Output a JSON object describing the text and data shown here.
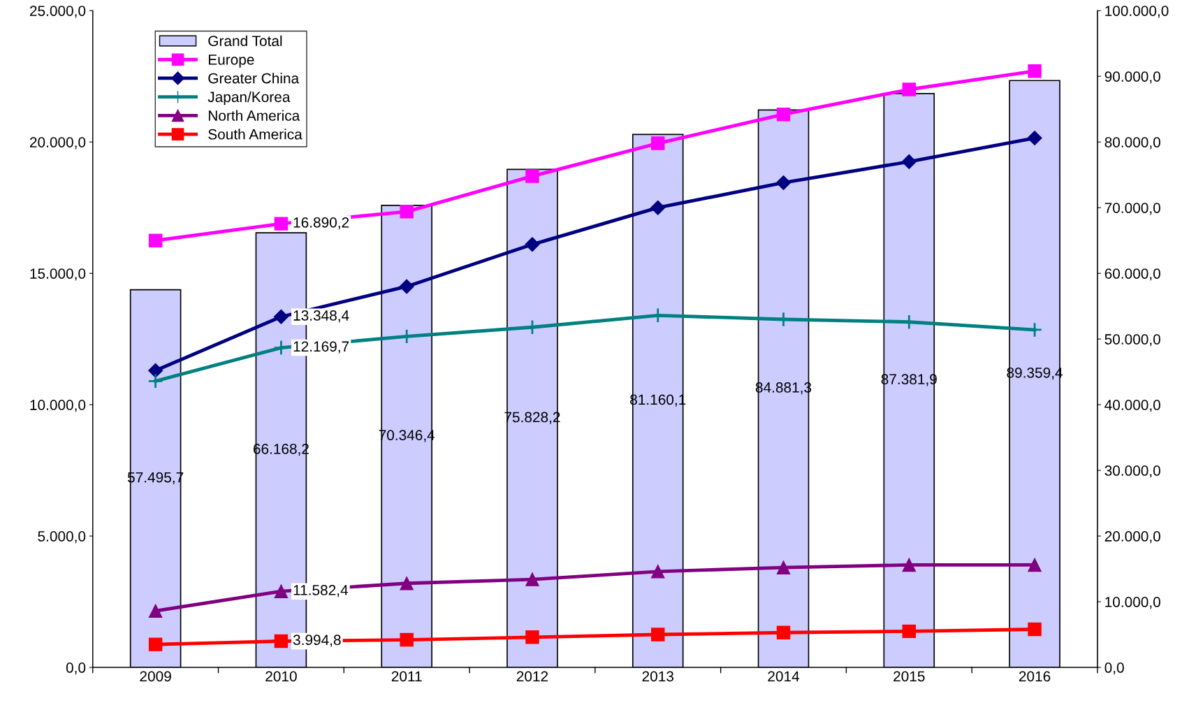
{
  "chart_data": {
    "type": "bar",
    "categories": [
      "2009",
      "2010",
      "2011",
      "2012",
      "2013",
      "2014",
      "2015",
      "2016"
    ],
    "series": [
      {
        "name": "Grand Total",
        "axis": "y2",
        "color": "#ccccff",
        "values": [
          57495.7,
          66168.2,
          70346.4,
          75828.2,
          81160.1,
          84881.3,
          87381.9,
          89359.4
        ],
        "value_labels": [
          "57.495,7",
          "66.168,2",
          "70.346,4",
          "75.828,2",
          "81.160,1",
          "84.881,3",
          "87.381,9",
          "89.359,4"
        ]
      },
      {
        "name": "Europe",
        "type": "line",
        "marker": "square",
        "color": "#ff00ff",
        "values": [
          16250,
          16890.2,
          17350,
          18700,
          19950,
          21050,
          22000,
          22700
        ],
        "value_labels": [
          null,
          "16.890,2",
          null,
          null,
          null,
          null,
          null,
          null
        ]
      },
      {
        "name": "Greater China",
        "type": "line",
        "marker": "diamond",
        "color": "#000080",
        "values": [
          11300,
          13348.4,
          14500,
          16100,
          17500,
          18450,
          19250,
          20150
        ],
        "value_labels": [
          null,
          "13.348,4",
          null,
          null,
          null,
          null,
          null,
          null
        ]
      },
      {
        "name": "Japan/Korea",
        "type": "line",
        "marker": "cross",
        "color": "#008080",
        "values": [
          10900,
          12169.7,
          12600,
          12950,
          13400,
          13250,
          13150,
          12850
        ],
        "value_labels": [
          null,
          "12.169,7",
          null,
          null,
          null,
          null,
          null,
          null
        ]
      },
      {
        "name": "North America",
        "type": "line",
        "marker": "triangle",
        "axis": "y2",
        "color": "#800080",
        "values": [
          8600,
          11582.4,
          12800,
          13400,
          14600,
          15200,
          15600,
          15600
        ],
        "value_labels": [
          null,
          "11.582,4",
          null,
          null,
          null,
          null,
          null,
          null
        ]
      },
      {
        "name": "South America",
        "type": "line",
        "marker": "square",
        "axis": "y2",
        "color": "#ff0000",
        "values": [
          3500,
          3994.8,
          4200,
          4600,
          5000,
          5300,
          5500,
          5800
        ],
        "value_labels": [
          null,
          "3.994,8",
          null,
          null,
          null,
          null,
          null,
          null
        ]
      }
    ],
    "ylim": [
      0,
      25000
    ],
    "yticks": [
      {
        "value": 0,
        "label": "0,0"
      },
      {
        "value": 5000,
        "label": "5.000,0"
      },
      {
        "value": 10000,
        "label": "10.000,0"
      },
      {
        "value": 15000,
        "label": "15.000,0"
      },
      {
        "value": 20000,
        "label": "20.000,0"
      },
      {
        "value": 25000,
        "label": "25.000,0"
      }
    ],
    "y2lim": [
      0,
      100000
    ],
    "y2ticks": [
      {
        "value": 0,
        "label": "0,0"
      },
      {
        "value": 10000,
        "label": "10.000,0"
      },
      {
        "value": 20000,
        "label": "20.000,0"
      },
      {
        "value": 30000,
        "label": "30.000,0"
      },
      {
        "value": 40000,
        "label": "40.000,0"
      },
      {
        "value": 50000,
        "label": "50.000,0"
      },
      {
        "value": 60000,
        "label": "60.000,0"
      },
      {
        "value": 70000,
        "label": "70.000,0"
      },
      {
        "value": 80000,
        "label": "80.000,0"
      },
      {
        "value": 90000,
        "label": "90.000,0"
      },
      {
        "value": 100000,
        "label": "100.000,0"
      }
    ],
    "grid": false,
    "legend": "top left"
  }
}
